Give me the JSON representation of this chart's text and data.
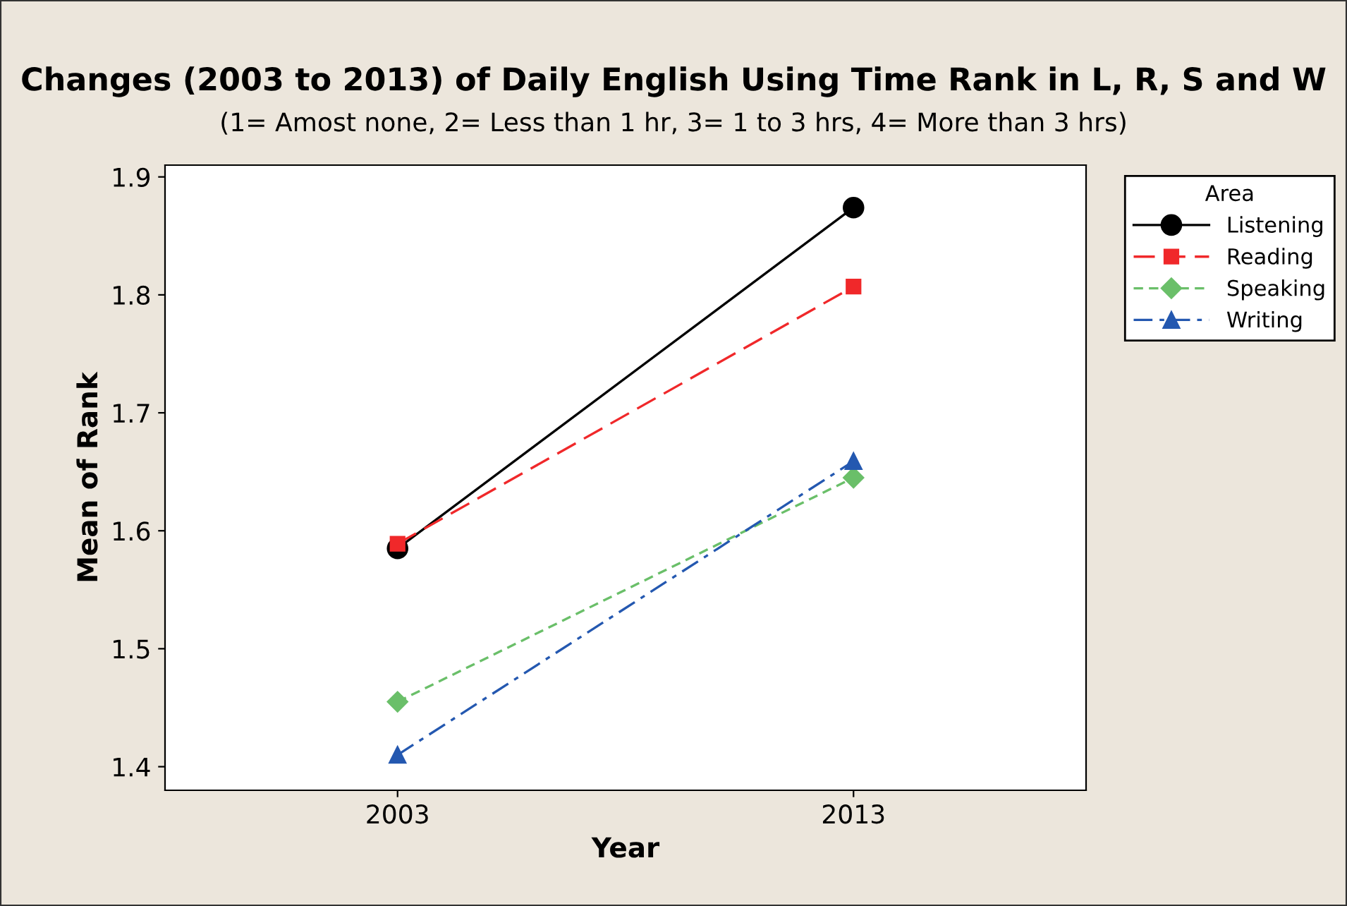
{
  "chart_data": {
    "type": "line",
    "title": "Changes (2003 to 2013) of Daily English Using Time Rank in L, R, S and W",
    "subtitle": "(1= Amost none, 2= Less than 1 hr, 3= 1 to 3 hrs, 4= More than 3 hrs)",
    "xlabel": "Year",
    "ylabel": "Mean of Rank",
    "legend_title": "Area",
    "categories": [
      "2003",
      "2013"
    ],
    "series": [
      {
        "name": "Listening",
        "color": "#000000",
        "marker": "circle",
        "line_style": "solid",
        "values": [
          1.585,
          1.874
        ]
      },
      {
        "name": "Reading",
        "color": "#f0282a",
        "marker": "square",
        "line_style": "dashed",
        "values": [
          1.589,
          1.807
        ]
      },
      {
        "name": "Speaking",
        "color": "#6abf69",
        "marker": "diamond",
        "line_style": "dotted",
        "values": [
          1.455,
          1.645
        ]
      },
      {
        "name": "Writing",
        "color": "#2458b0",
        "marker": "triangle",
        "line_style": "dashdot",
        "values": [
          1.41,
          1.659
        ]
      }
    ],
    "ylim": [
      1.38,
      1.91
    ],
    "yticks": [
      1.4,
      1.5,
      1.6,
      1.7,
      1.8,
      1.9
    ],
    "grid": false,
    "legend": "top right"
  }
}
